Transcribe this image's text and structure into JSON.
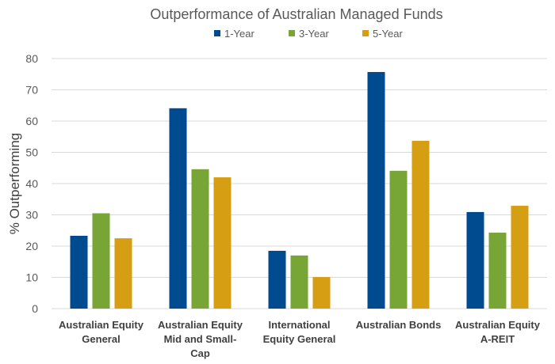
{
  "chart_data": {
    "type": "bar",
    "title": "Outperformance of Australian Managed Funds",
    "xlabel": "",
    "ylabel": "% Outperforming",
    "ylim": [
      0,
      80
    ],
    "yticks": [
      0,
      10,
      20,
      30,
      40,
      50,
      60,
      70,
      80
    ],
    "grid": true,
    "legend_position": "top",
    "categories": [
      [
        "Australian Equity",
        "General"
      ],
      [
        "Australian Equity",
        "Mid and Small-",
        "Cap"
      ],
      [
        "International",
        "Equity General"
      ],
      [
        "Australian Bonds"
      ],
      [
        "Australian Equity",
        "A-REIT"
      ]
    ],
    "series": [
      {
        "name": "1-Year",
        "color": "#004A8F",
        "values": [
          23.3,
          64.1,
          18.5,
          75.7,
          30.9
        ]
      },
      {
        "name": "3-Year",
        "color": "#77A636",
        "values": [
          30.5,
          44.6,
          17.0,
          44.1,
          24.3
        ]
      },
      {
        "name": "5-Year",
        "color": "#D69E12",
        "values": [
          22.5,
          42.0,
          10.1,
          53.7,
          32.9
        ]
      }
    ]
  }
}
